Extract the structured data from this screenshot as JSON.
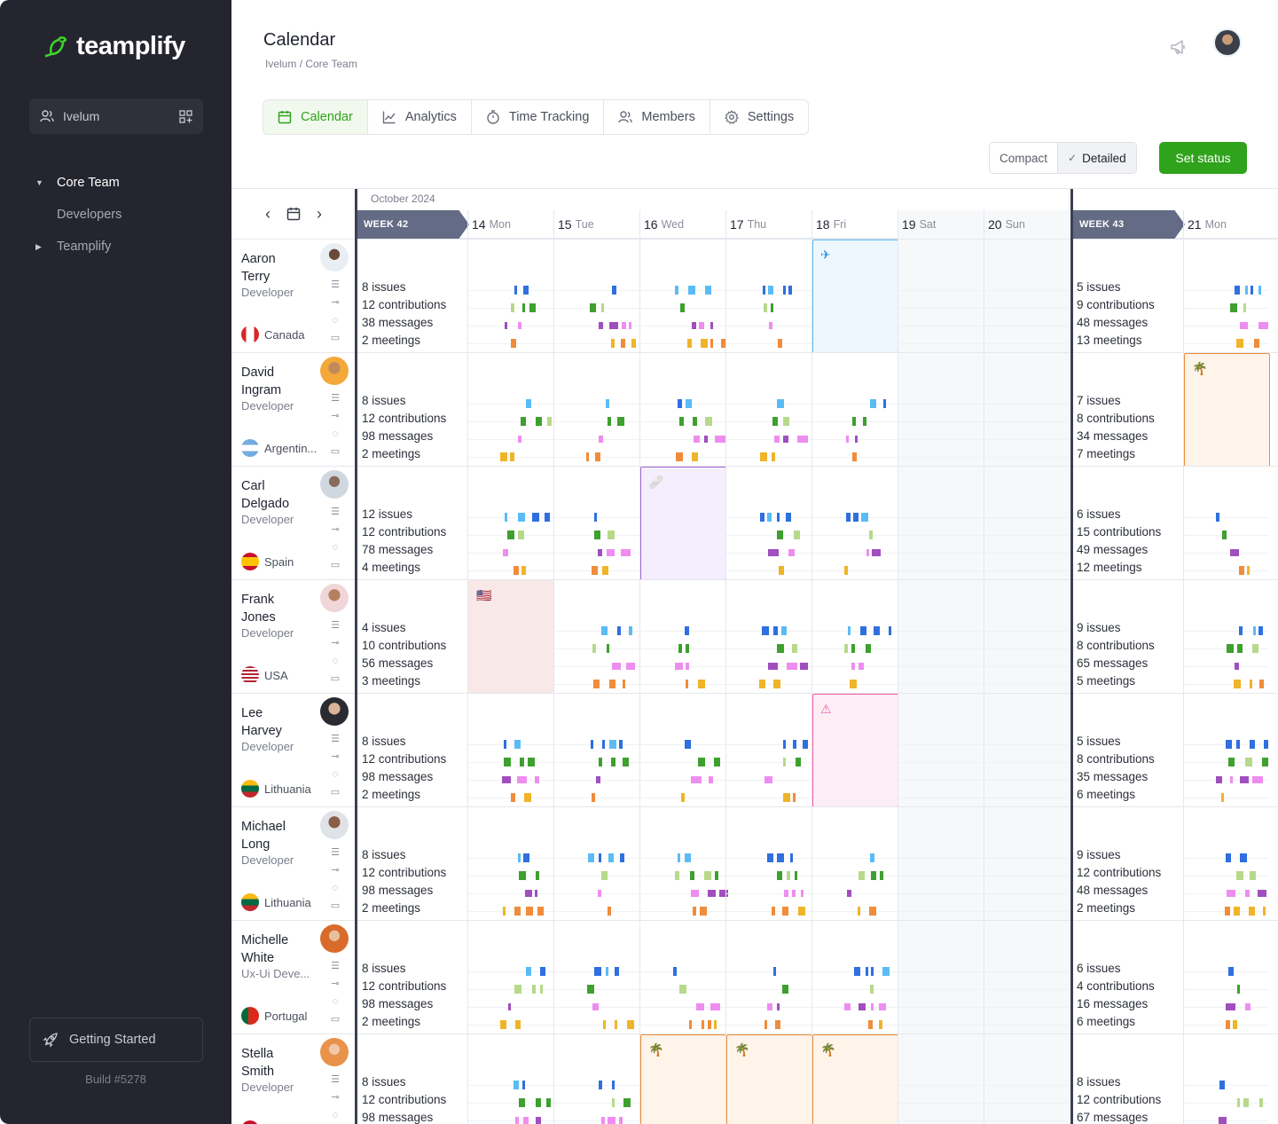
{
  "brand": {
    "name": "teamplify",
    "accent": "#2fa31b"
  },
  "org": {
    "name": "Ivelum",
    "icon": "users-icon"
  },
  "nav": [
    {
      "label": "Core Team",
      "expanded": true,
      "active": true
    },
    {
      "label": "Developers",
      "sub": true
    },
    {
      "label": "Teamplify",
      "expanded": false
    }
  ],
  "footer": {
    "getting_started": "Getting Started",
    "build": "Build #5278"
  },
  "header": {
    "title": "Calendar",
    "breadcrumb": "Ivelum / Core Team"
  },
  "tabs": [
    "Calendar",
    "Analytics",
    "Time Tracking",
    "Members",
    "Settings"
  ],
  "view": {
    "compact": "Compact",
    "detailed": "Detailed",
    "set_status": "Set status"
  },
  "calendar": {
    "month": "October 2024",
    "weeks": [
      "WEEK 42",
      "WEEK 43"
    ],
    "days": [
      {
        "num": "14",
        "dow": "Mon"
      },
      {
        "num": "15",
        "dow": "Tue"
      },
      {
        "num": "16",
        "dow": "Wed"
      },
      {
        "num": "17",
        "dow": "Thu"
      },
      {
        "num": "18",
        "dow": "Fri"
      },
      {
        "num": "19",
        "dow": "Sat"
      },
      {
        "num": "20",
        "dow": "Sun"
      },
      {
        "num": "21",
        "dow": "Mon"
      }
    ]
  },
  "people": [
    {
      "first": "Aaron",
      "last": "Terry",
      "role": "Developer",
      "country": "Canada",
      "w42": [
        "8 issues",
        "12 contributions",
        "38 messages",
        "2 meetings"
      ],
      "w43": [
        "5 issues",
        "9 contributions",
        "48 messages",
        "13 meetings"
      ]
    },
    {
      "first": "David",
      "last": "Ingram",
      "role": "Developer",
      "country": "Argentin...",
      "w42": [
        "8 issues",
        "12 contributions",
        "98 messages",
        "2 meetings"
      ],
      "w43": [
        "7 issues",
        "8 contributions",
        "34 messages",
        "7 meetings"
      ]
    },
    {
      "first": "Carl",
      "last": "Delgado",
      "role": "Developer",
      "country": "Spain",
      "w42": [
        "12 issues",
        "12 contributions",
        "78 messages",
        "4 meetings"
      ],
      "w43": [
        "6 issues",
        "15 contributions",
        "49 messages",
        "12 meetings"
      ]
    },
    {
      "first": "Frank",
      "last": "Jones",
      "role": "Developer",
      "country": "USA",
      "w42": [
        "4 issues",
        "10 contributions",
        "56 messages",
        "3 meetings"
      ],
      "w43": [
        "9 issues",
        "8 contributions",
        "65 messages",
        "5 meetings"
      ]
    },
    {
      "first": "Lee",
      "last": "Harvey",
      "role": "Developer",
      "country": "Lithuania",
      "w42": [
        "8 issues",
        "12 contributions",
        "98 messages",
        "2 meetings"
      ],
      "w43": [
        "5 issues",
        "8 contributions",
        "35 messages",
        "6 meetings"
      ]
    },
    {
      "first": "Michael",
      "last": "Long",
      "role": "Developer",
      "country": "Lithuania",
      "w42": [
        "8 issues",
        "12 contributions",
        "98 messages",
        "2 meetings"
      ],
      "w43": [
        "9 issues",
        "12 contributions",
        "48 messages",
        "2 meetings"
      ]
    },
    {
      "first": "Michelle",
      "last": "White",
      "role": "Ux-Ui Deve...",
      "country": "Portugal",
      "w42": [
        "8 issues",
        "12 contributions",
        "98 messages",
        "2 meetings"
      ],
      "w43": [
        "6 issues",
        "4 contributions",
        "16 messages",
        "6 meetings"
      ]
    },
    {
      "first": "Stella",
      "last": "Smith",
      "role": "Developer",
      "country": "",
      "w42": [
        "8 issues",
        "12 contributions",
        "98 messages",
        ""
      ],
      "w43": [
        "8 issues",
        "12 contributions",
        "67 messages",
        ""
      ]
    }
  ],
  "colors": {
    "issues": "#2f6fe0",
    "issues_light": "#5bbcf5",
    "contrib": "#3ea02e",
    "contrib_light": "#b7d98a",
    "msg": "#ee8df0",
    "msg_dark": "#a04fbf",
    "meet": "#f0b429",
    "meet_dark": "#f08c3a"
  }
}
